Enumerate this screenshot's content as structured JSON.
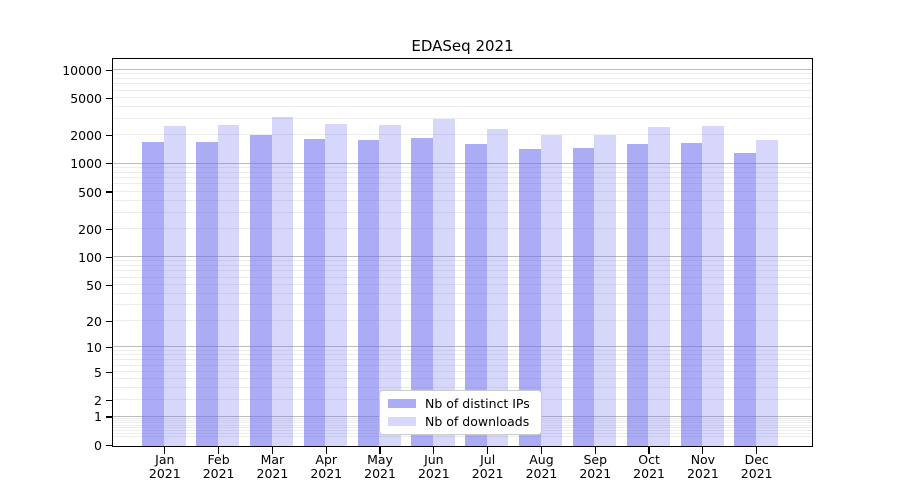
{
  "figure": {
    "title": "EDASeq 2021"
  },
  "chart_data": {
    "type": "bar",
    "title": "EDASeq 2021",
    "categories": [
      "Jan 2021",
      "Feb 2021",
      "Mar 2021",
      "Apr 2021",
      "May 2021",
      "Jun 2021",
      "Jul 2021",
      "Aug 2021",
      "Sep 2021",
      "Oct 2021",
      "Nov 2021",
      "Dec 2021"
    ],
    "category_line1": [
      "Jan",
      "Feb",
      "Mar",
      "Apr",
      "May",
      "Jun",
      "Jul",
      "Aug",
      "Sep",
      "Oct",
      "Nov",
      "Dec"
    ],
    "category_line2": "2021",
    "series": [
      {
        "name": "Nb of distinct IPs",
        "color": "#ababf6",
        "fill": "rgba(102,102,238,0.55)",
        "values": [
          1760,
          1730,
          2090,
          1880,
          1820,
          1920,
          1670,
          1460,
          1500,
          1670,
          1720,
          1340
        ]
      },
      {
        "name": "Nb of downloads",
        "color": "#d7d7fb",
        "fill": "rgba(102,102,238,0.26)",
        "values": [
          2610,
          2650,
          3250,
          2720,
          2670,
          3050,
          2380,
          2060,
          2080,
          2530,
          2610,
          1850
        ]
      }
    ],
    "y_axis": {
      "scale": "log1p",
      "ticks": [
        10000,
        5000,
        2000,
        1000,
        500,
        200,
        100,
        50,
        20,
        10,
        5,
        2,
        1,
        0
      ],
      "max": 12900,
      "major_gridlines": [
        1,
        10,
        100,
        1000,
        10000
      ]
    },
    "x_axis": {
      "label_year": "2021"
    },
    "grid": {
      "major_color": "#bdbdbd",
      "minor_color": "#ececec"
    },
    "legend": {
      "position": "lower center"
    },
    "colors": {
      "spine": "#000000",
      "background": "#ffffff",
      "text": "#000000"
    }
  }
}
